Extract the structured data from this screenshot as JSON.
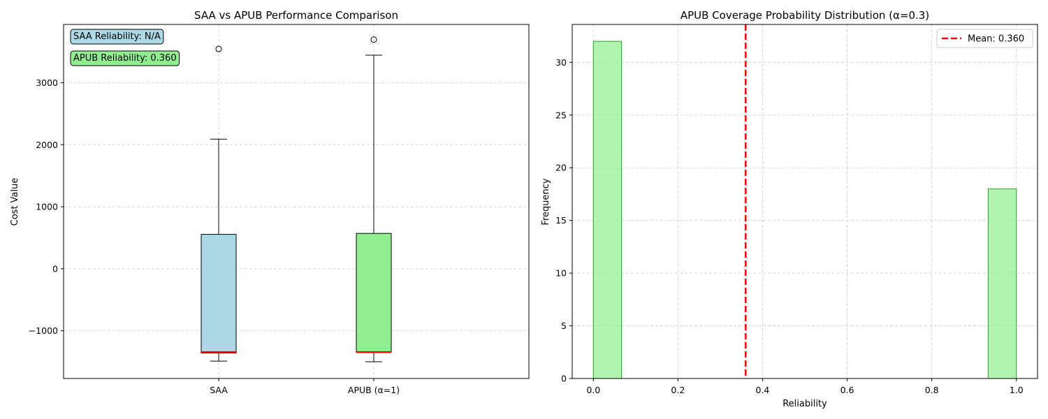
{
  "chart_data": [
    {
      "type": "box",
      "title": "SAA vs APUB Performance Comparison",
      "xlabel": "",
      "ylabel": "Cost Value",
      "categories": [
        "SAA",
        "APUB (α=1)"
      ],
      "boxes": [
        {
          "name": "SAA",
          "whisker_low": -1490,
          "q1": -1360,
          "median": -1345,
          "q3": 555,
          "whisker_high": 2090,
          "outliers": [
            3545
          ],
          "color": "#add8e6"
        },
        {
          "name": "APUB (α=1)",
          "whisker_low": -1500,
          "q1": -1345,
          "median": -1345,
          "q3": 570,
          "whisker_high": 3445,
          "outliers": [
            3695
          ],
          "color": "#90ee90"
        }
      ],
      "median_color": "#ff0000",
      "ylim": [
        -1770,
        3940
      ],
      "yticks": [
        -1000,
        0,
        1000,
        2000,
        3000
      ],
      "ytick_labels": [
        "−1000",
        "0",
        "1000",
        "2000",
        "3000"
      ],
      "grid": true,
      "annotations": [
        {
          "text": "SAA Reliability: N/A",
          "color": "#add8e6"
        },
        {
          "text": "APUB Reliability: 0.360",
          "color": "#90ee90"
        }
      ]
    },
    {
      "type": "histogram",
      "title": "APUB Coverage Probability Distribution (α=0.3)",
      "xlabel": "Reliability",
      "ylabel": "Frequency",
      "bins": [
        {
          "x0": 0.0,
          "x1": 0.0667,
          "count": 32
        },
        {
          "x0": 0.9333,
          "x1": 1.0,
          "count": 18
        }
      ],
      "bar_color": "#90ee90",
      "bar_edge_color": "#2ca02c",
      "mean": 0.36,
      "mean_color": "#ff0000",
      "xlim": [
        -0.05,
        1.05
      ],
      "ylim": [
        0,
        33.6
      ],
      "xticks": [
        0.0,
        0.2,
        0.4,
        0.6,
        0.8,
        1.0
      ],
      "xtick_labels": [
        "0.0",
        "0.2",
        "0.4",
        "0.6",
        "0.8",
        "1.0"
      ],
      "yticks": [
        0,
        5,
        10,
        15,
        20,
        25,
        30
      ],
      "ytick_labels": [
        "0",
        "5",
        "10",
        "15",
        "20",
        "25",
        "30"
      ],
      "grid": true,
      "legend_position": "top-right",
      "legend": [
        "Mean: 0.360"
      ]
    }
  ]
}
